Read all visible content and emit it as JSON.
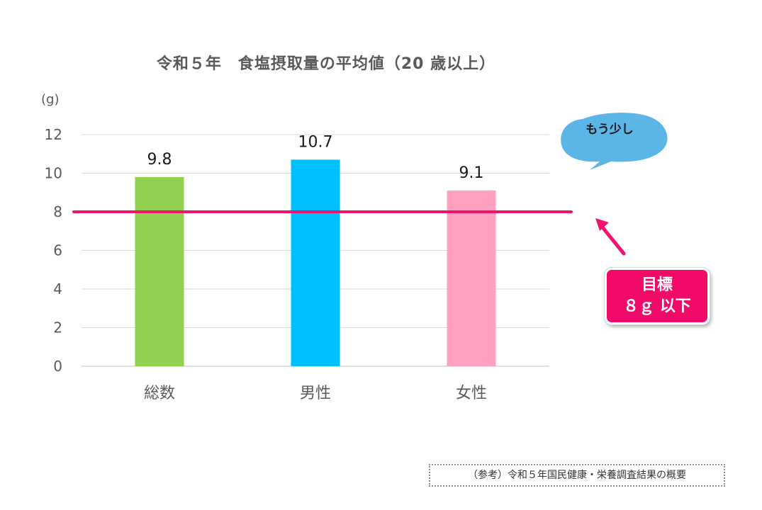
{
  "chart_data": {
    "type": "bar",
    "title": "令和５年　食塩摂取量の平均値（20 歳以上）",
    "ylabel": "(g)",
    "xlabel": "",
    "categories": [
      "総数",
      "男性",
      "女性"
    ],
    "values": [
      9.8,
      10.7,
      9.1
    ],
    "value_labels": [
      "9.8",
      "10.7",
      "9.1"
    ],
    "bar_colors": [
      "#92d050",
      "#00bfff",
      "#ffa0c0"
    ],
    "ylim": [
      0,
      12
    ],
    "yticks": [
      0,
      2,
      4,
      6,
      8,
      10,
      12
    ],
    "grid": true,
    "reference_line": {
      "value": 8,
      "color": "#f0146e"
    }
  },
  "annotations": {
    "bubble_text": "もう少し",
    "bubble_color": "#5bb5e6",
    "target_line1": "目標",
    "target_line2": "８ｇ 以下",
    "target_color": "#f20a68",
    "arrow_color": "#f0146e"
  },
  "source_note": "（参考）令和５年国民健康・栄養調査結果の概要"
}
